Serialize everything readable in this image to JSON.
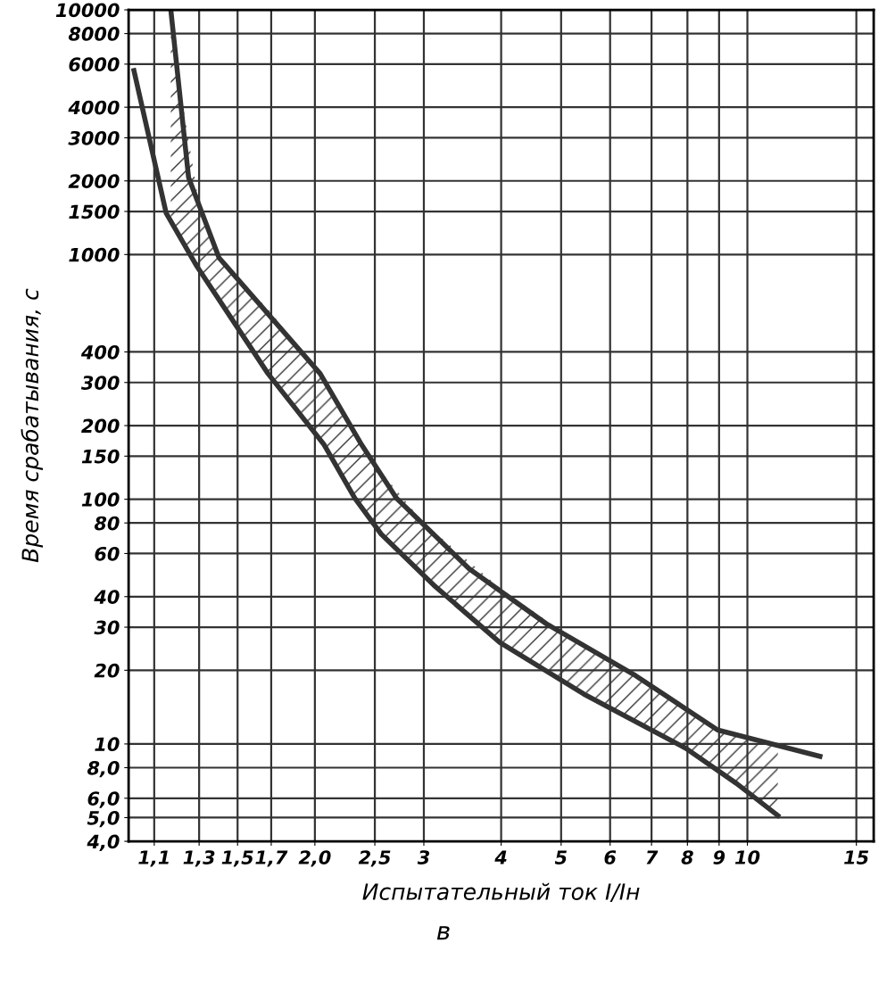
{
  "chart_data": {
    "type": "line",
    "xlabel": "Испытательный ток I/Iн",
    "ylabel": "Время срабатывания, с",
    "annotations": [
      "в"
    ],
    "series": [
      {
        "color": "#333333",
        "x": [
          1.17,
          1.25,
          1.4,
          2.04,
          2.38,
          2.71,
          3.55,
          4.73,
          6.6,
          8.95,
          13.1
        ],
        "values": [
          10000,
          2065,
          970,
          326,
          167,
          101,
          52,
          31,
          19,
          11.4,
          8.9
        ]
      },
      {
        "color": "#333333",
        "x": [
          1.17,
          1.2,
          1.3,
          1.4,
          1.7,
          2.0,
          2.5,
          3,
          4,
          5,
          6,
          7,
          8,
          9,
          10,
          11.2
        ],
        "values": [
          null,
          null,
          null,
          null,
          null,
          null,
          null,
          null,
          null,
          null,
          null,
          null,
          null,
          null,
          null,
          null
        ],
        "upper": [
          10000,
          5530,
          1600,
          970,
          580,
          340,
          139,
          80,
          43,
          29,
          22,
          17.4,
          14,
          11.4,
          10.7,
          10
        ],
        "lower": [
          1380,
          1230,
          870,
          673,
          315,
          188,
          78,
          49,
          26,
          18.5,
          14.3,
          11.6,
          9.5,
          7.8,
          6.4,
          5.1
        ]
      },
      {
        "color": "#333333",
        "x": [
          1.02,
          1.15,
          1.29,
          1.68,
          2.07,
          2.32,
          2.56,
          3.13,
          3.98,
          5.44,
          7.95,
          9.6,
          11.2
        ],
        "values": [
          5650,
          1476,
          893,
          326,
          167,
          101,
          72,
          44,
          26,
          16,
          9.6,
          6.9,
          5.1
        ]
      }
    ],
    "log": "xy",
    "xlim": [
      1.0,
      16
    ],
    "ylim": [
      4,
      10000
    ],
    "xticks": [
      {
        "value": 1.1,
        "label": "1,1"
      },
      {
        "value": 1.3,
        "label": "1,3"
      },
      {
        "value": 1.5,
        "label": "1,5"
      },
      {
        "value": 1.7,
        "label": "1,7"
      },
      {
        "value": 2.0,
        "label": "2,0"
      },
      {
        "value": 2.5,
        "label": "2,5"
      },
      3,
      4,
      5,
      6,
      7,
      8,
      9,
      10,
      15
    ],
    "yticks": [
      {
        "value": 4,
        "label": "4,0"
      },
      {
        "value": 5,
        "label": "5,0"
      },
      {
        "value": 6,
        "label": "6,0"
      },
      {
        "value": 8,
        "label": "8,0"
      },
      10,
      20,
      30,
      40,
      60,
      80,
      100,
      150,
      200,
      300,
      400,
      1000,
      1500,
      2000,
      3000,
      4000,
      6000,
      8000,
      10000
    ],
    "grid": true,
    "marker": "none",
    "line_style": "solid",
    "legend": false
  }
}
